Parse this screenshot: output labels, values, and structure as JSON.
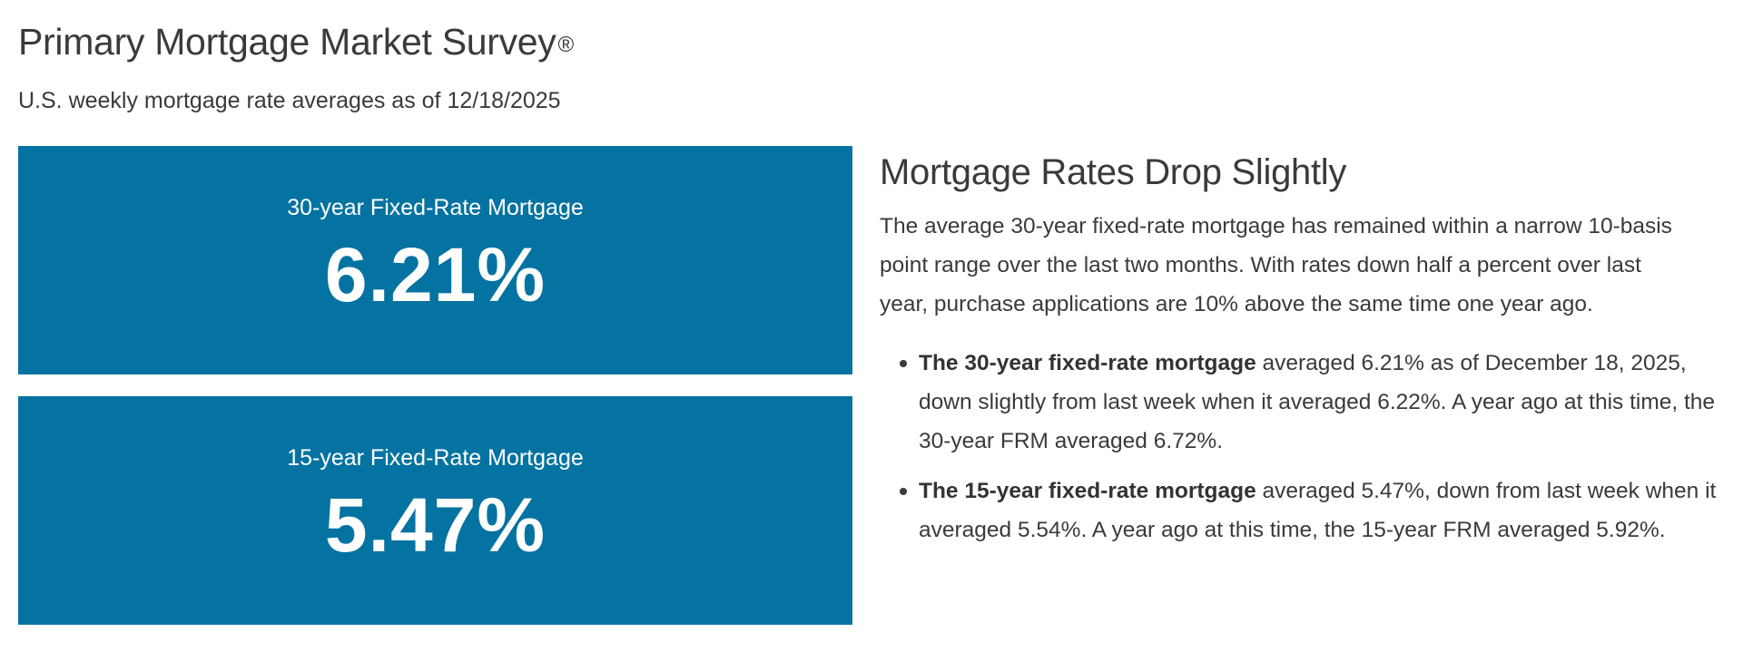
{
  "header": {
    "title": "Primary Mortgage Market Survey",
    "title_mark": "®",
    "subtitle": "U.S. weekly mortgage rate averages as of 12/18/2025"
  },
  "rates": {
    "thirty_year": {
      "label": "30-year Fixed-Rate Mortgage",
      "value": "6.21%"
    },
    "fifteen_year": {
      "label": "15-year Fixed-Rate Mortgage",
      "value": "5.47%"
    }
  },
  "commentary": {
    "heading": "Mortgage Rates Drop Slightly",
    "body": "The average 30-year fixed-rate mortgage has remained within a narrow 10-basis point range over the last two months. With rates down half a percent over last year, purchase applications are 10% above the same time one year ago.",
    "bullets": [
      {
        "bold": "The 30-year fixed-rate mortgage",
        "text": " averaged 6.21% as of December 18, 2025, down slightly from last week when it averaged 6.22%. A year ago at this time, the 30-year FRM averaged 6.72%."
      },
      {
        "bold": "The 15-year fixed-rate mortgage",
        "text": " averaged 5.47%, down from last week when it averaged 5.54%. A year ago at this time, the 15-year FRM averaged 5.92%."
      }
    ]
  },
  "colors": {
    "card_background": "#0573a1",
    "card_text": "#ffffff",
    "body_text": "#3a3a3a"
  }
}
